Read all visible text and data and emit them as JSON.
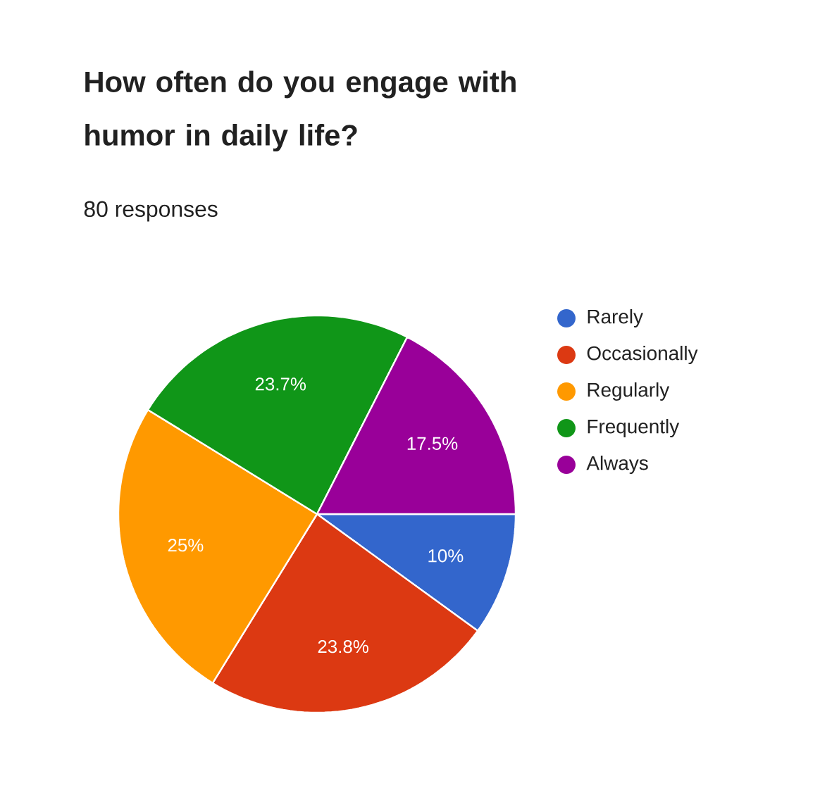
{
  "chart_data": {
    "type": "pie",
    "title": "How often do you engage with humor in daily life?",
    "subtitle": "80 responses",
    "categories": [
      "Rarely",
      "Occasionally",
      "Regularly",
      "Frequently",
      "Always"
    ],
    "values": [
      10,
      23.8,
      25,
      23.7,
      17.5
    ],
    "value_labels": [
      "10%",
      "23.8%",
      "25%",
      "23.7%",
      "17.5%"
    ],
    "colors": [
      "#3366cc",
      "#dc3912",
      "#ff9900",
      "#109618",
      "#990099"
    ],
    "legend": "right"
  }
}
